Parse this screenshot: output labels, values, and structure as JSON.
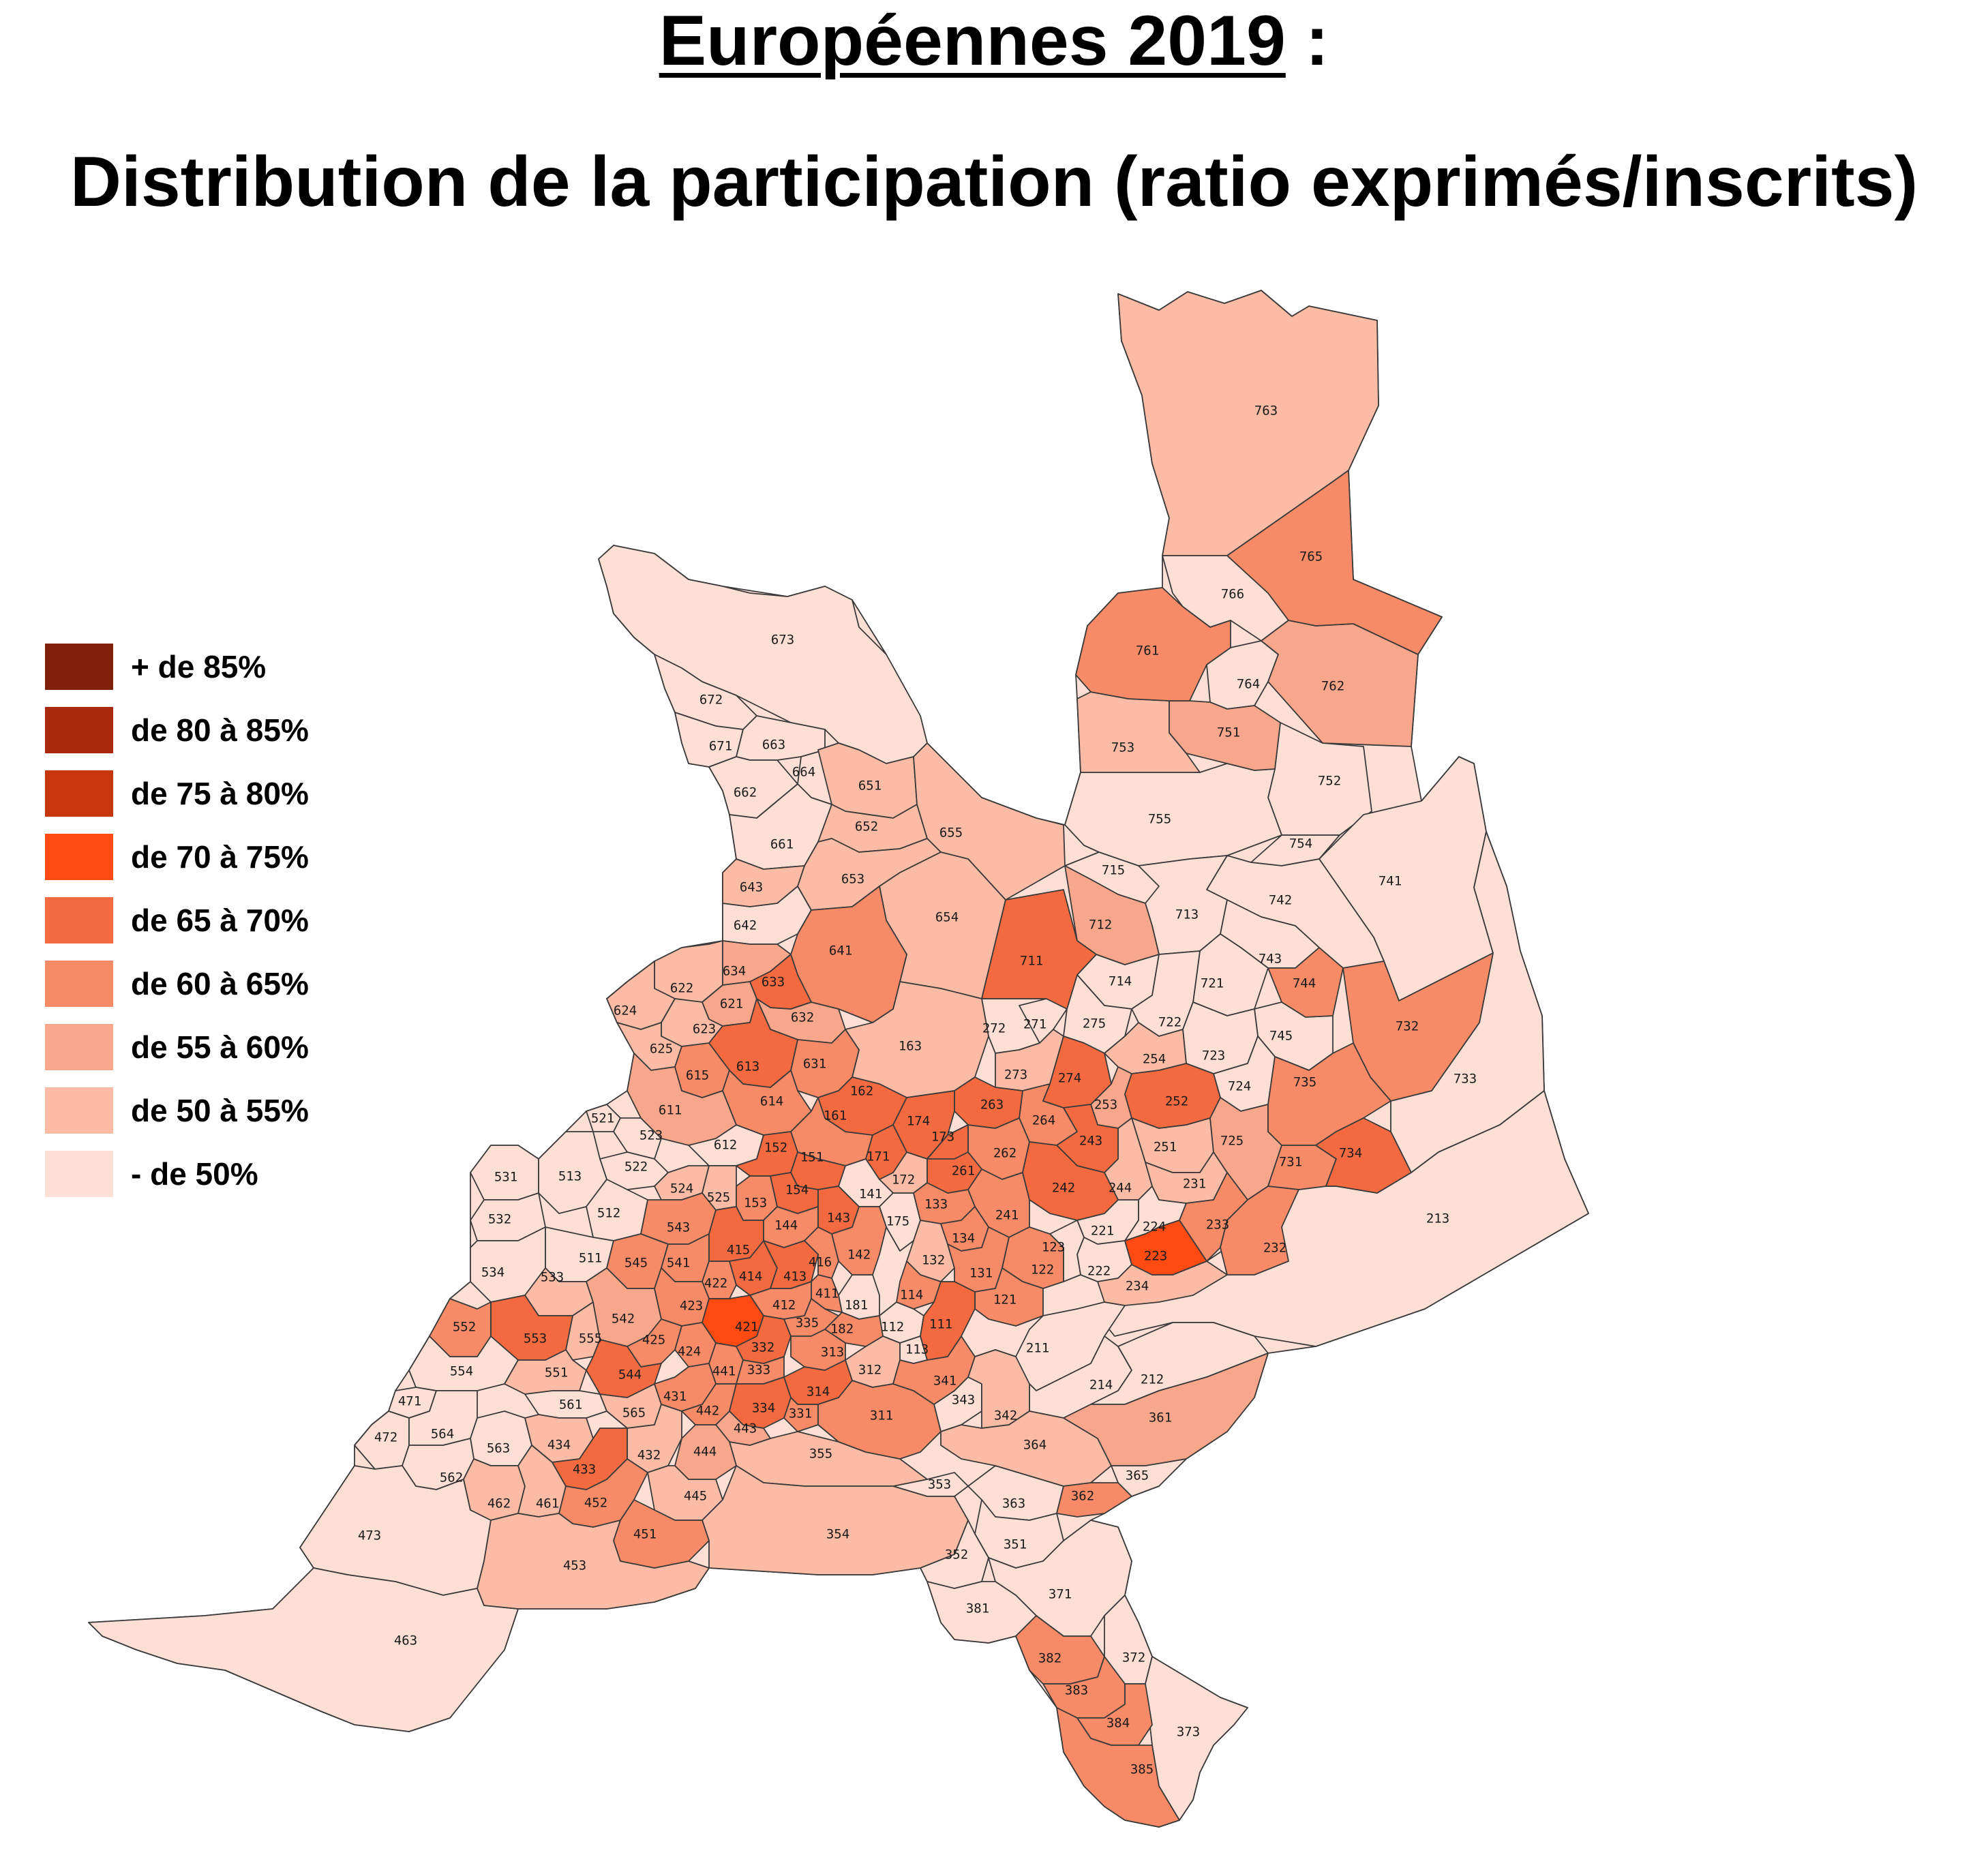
{
  "title": {
    "line1_main": "Européennes 2019",
    "line1_suffix": " :",
    "line2": "Distribution de la participation (ratio exprimés/inscrits)"
  },
  "legend": [
    {
      "label": "+ de 85%",
      "color": "#80200b"
    },
    {
      "label": "de 80 à 85%",
      "color": "#a8290c"
    },
    {
      "label": "de 75 à 80%",
      "color": "#c9360d"
    },
    {
      "label": "de 70 à 75%",
      "color": "#ff4a11"
    },
    {
      "label": "de 65 à 70%",
      "color": "#f36a40"
    },
    {
      "label": "de 60 à 65%",
      "color": "#f78a67"
    },
    {
      "label": "de 55 à 60%",
      "color": "#f9a78c"
    },
    {
      "label": "de 50 à 55%",
      "color": "#fbbba5"
    },
    {
      "label": "- de 50%",
      "color": "#fddfd6"
    }
  ],
  "districts": [
    {
      "id": "763",
      "class": 7
    },
    {
      "id": "765",
      "class": 5
    },
    {
      "id": "766",
      "class": 8
    },
    {
      "id": "761",
      "class": 5
    },
    {
      "id": "764",
      "class": 8
    },
    {
      "id": "762",
      "class": 6
    },
    {
      "id": "751",
      "class": 6
    },
    {
      "id": "753",
      "class": 7
    },
    {
      "id": "752",
      "class": 8
    },
    {
      "id": "755",
      "class": 8
    },
    {
      "id": "754",
      "class": 8
    },
    {
      "id": "741",
      "class": 8
    },
    {
      "id": "742",
      "class": 8
    },
    {
      "id": "713",
      "class": 8
    },
    {
      "id": "715",
      "class": 8
    },
    {
      "id": "712",
      "class": 6
    },
    {
      "id": "711",
      "class": 4
    },
    {
      "id": "714",
      "class": 8
    },
    {
      "id": "743",
      "class": 8
    },
    {
      "id": "721",
      "class": 8
    },
    {
      "id": "744",
      "class": 5
    },
    {
      "id": "732",
      "class": 5
    },
    {
      "id": "722",
      "class": 8
    },
    {
      "id": "745",
      "class": 8
    },
    {
      "id": "723",
      "class": 8
    },
    {
      "id": "724",
      "class": 8
    },
    {
      "id": "735",
      "class": 5
    },
    {
      "id": "733",
      "class": 8
    },
    {
      "id": "725",
      "class": 6
    },
    {
      "id": "731",
      "class": 5
    },
    {
      "id": "734",
      "class": 4
    },
    {
      "id": "213",
      "class": 8
    },
    {
      "id": "673",
      "class": 8
    },
    {
      "id": "672",
      "class": 8
    },
    {
      "id": "671",
      "class": 8
    },
    {
      "id": "663",
      "class": 8
    },
    {
      "id": "664",
      "class": 8
    },
    {
      "id": "662",
      "class": 8
    },
    {
      "id": "661",
      "class": 8
    },
    {
      "id": "651",
      "class": 7
    },
    {
      "id": "652",
      "class": 7
    },
    {
      "id": "655",
      "class": 7
    },
    {
      "id": "653",
      "class": 7
    },
    {
      "id": "643",
      "class": 7
    },
    {
      "id": "642",
      "class": 8
    },
    {
      "id": "654",
      "class": 7
    },
    {
      "id": "641",
      "class": 5
    },
    {
      "id": "634",
      "class": 6
    },
    {
      "id": "633",
      "class": 4
    },
    {
      "id": "622",
      "class": 7
    },
    {
      "id": "621",
      "class": 6
    },
    {
      "id": "632",
      "class": 6
    },
    {
      "id": "624",
      "class": 7
    },
    {
      "id": "623",
      "class": 7
    },
    {
      "id": "625",
      "class": 7
    },
    {
      "id": "613",
      "class": 4
    },
    {
      "id": "631",
      "class": 5
    },
    {
      "id": "615",
      "class": 5
    },
    {
      "id": "614",
      "class": 5
    },
    {
      "id": "611",
      "class": 6
    },
    {
      "id": "612",
      "class": 8
    },
    {
      "id": "163",
      "class": 7
    },
    {
      "id": "162",
      "class": 4
    },
    {
      "id": "161",
      "class": 5
    },
    {
      "id": "272",
      "class": 8
    },
    {
      "id": "271",
      "class": 8
    },
    {
      "id": "275",
      "class": 8
    },
    {
      "id": "273",
      "class": 7
    },
    {
      "id": "274",
      "class": 4
    },
    {
      "id": "254",
      "class": 7
    },
    {
      "id": "252",
      "class": 4
    },
    {
      "id": "253",
      "class": 6
    },
    {
      "id": "251",
      "class": 7
    },
    {
      "id": "264",
      "class": 5
    },
    {
      "id": "263",
      "class": 4
    },
    {
      "id": "262",
      "class": 5
    },
    {
      "id": "261",
      "class": 4
    },
    {
      "id": "243",
      "class": 4
    },
    {
      "id": "244",
      "class": 7
    },
    {
      "id": "242",
      "class": 4
    },
    {
      "id": "241",
      "class": 5
    },
    {
      "id": "231",
      "class": 7
    },
    {
      "id": "233",
      "class": 5
    },
    {
      "id": "232",
      "class": 5
    },
    {
      "id": "221",
      "class": 8
    },
    {
      "id": "224",
      "class": 8
    },
    {
      "id": "223",
      "class": 3
    },
    {
      "id": "222",
      "class": 8
    },
    {
      "id": "234",
      "class": 7
    },
    {
      "id": "174",
      "class": 4
    },
    {
      "id": "173",
      "class": 4
    },
    {
      "id": "171",
      "class": 4
    },
    {
      "id": "172",
      "class": 7
    },
    {
      "id": "152",
      "class": 4
    },
    {
      "id": "151",
      "class": 4
    },
    {
      "id": "154",
      "class": 4
    },
    {
      "id": "153",
      "class": 5
    },
    {
      "id": "141",
      "class": 8
    },
    {
      "id": "143",
      "class": 4
    },
    {
      "id": "144",
      "class": 5
    },
    {
      "id": "142",
      "class": 5
    },
    {
      "id": "175",
      "class": 8
    },
    {
      "id": "133",
      "class": 5
    },
    {
      "id": "134",
      "class": 5
    },
    {
      "id": "132",
      "class": 7
    },
    {
      "id": "131",
      "class": 5
    },
    {
      "id": "122",
      "class": 5
    },
    {
      "id": "121",
      "class": 5
    },
    {
      "id": "123",
      "class": 8
    },
    {
      "id": "114",
      "class": 5
    },
    {
      "id": "111",
      "class": 4
    },
    {
      "id": "112",
      "class": 8
    },
    {
      "id": "113",
      "class": 8
    },
    {
      "id": "181",
      "class": 8
    },
    {
      "id": "182",
      "class": 5
    },
    {
      "id": "521",
      "class": 8
    },
    {
      "id": "523",
      "class": 8
    },
    {
      "id": "522",
      "class": 8
    },
    {
      "id": "531",
      "class": 8
    },
    {
      "id": "513",
      "class": 8
    },
    {
      "id": "512",
      "class": 8
    },
    {
      "id": "532",
      "class": 8
    },
    {
      "id": "524",
      "class": 7
    },
    {
      "id": "525",
      "class": 7
    },
    {
      "id": "543",
      "class": 5
    },
    {
      "id": "534",
      "class": 8
    },
    {
      "id": "511",
      "class": 8
    },
    {
      "id": "533",
      "class": 7
    },
    {
      "id": "545",
      "class": 5
    },
    {
      "id": "541",
      "class": 5
    },
    {
      "id": "415",
      "class": 4
    },
    {
      "id": "414",
      "class": 4
    },
    {
      "id": "413",
      "class": 4
    },
    {
      "id": "416",
      "class": 5
    },
    {
      "id": "422",
      "class": 5
    },
    {
      "id": "423",
      "class": 5
    },
    {
      "id": "411",
      "class": 5
    },
    {
      "id": "412",
      "class": 5
    },
    {
      "id": "542",
      "class": 6
    },
    {
      "id": "552",
      "class": 5
    },
    {
      "id": "553",
      "class": 4
    },
    {
      "id": "555",
      "class": 7
    },
    {
      "id": "425",
      "class": 5
    },
    {
      "id": "421",
      "class": 3
    },
    {
      "id": "335",
      "class": 5
    },
    {
      "id": "424",
      "class": 5
    },
    {
      "id": "332",
      "class": 4
    },
    {
      "id": "313",
      "class": 5
    },
    {
      "id": "554",
      "class": 8
    },
    {
      "id": "551",
      "class": 7
    },
    {
      "id": "544",
      "class": 4
    },
    {
      "id": "441",
      "class": 5
    },
    {
      "id": "333",
      "class": 5
    },
    {
      "id": "312",
      "class": 7
    },
    {
      "id": "471",
      "class": 8
    },
    {
      "id": "561",
      "class": 8
    },
    {
      "id": "565",
      "class": 7
    },
    {
      "id": "431",
      "class": 5
    },
    {
      "id": "442",
      "class": 5
    },
    {
      "id": "334",
      "class": 4
    },
    {
      "id": "314",
      "class": 4
    },
    {
      "id": "331",
      "class": 5
    },
    {
      "id": "311",
      "class": 5
    },
    {
      "id": "341",
      "class": 5
    },
    {
      "id": "343",
      "class": 8
    },
    {
      "id": "342",
      "class": 7
    },
    {
      "id": "472",
      "class": 8
    },
    {
      "id": "564",
      "class": 8
    },
    {
      "id": "563",
      "class": 8
    },
    {
      "id": "434",
      "class": 7
    },
    {
      "id": "432",
      "class": 7
    },
    {
      "id": "443",
      "class": 6
    },
    {
      "id": "444",
      "class": 6
    },
    {
      "id": "355",
      "class": 7
    },
    {
      "id": "364",
      "class": 7
    },
    {
      "id": "361",
      "class": 6
    },
    {
      "id": "562",
      "class": 8
    },
    {
      "id": "433",
      "class": 4
    },
    {
      "id": "365",
      "class": 8
    },
    {
      "id": "462",
      "class": 7
    },
    {
      "id": "461",
      "class": 7
    },
    {
      "id": "452",
      "class": 5
    },
    {
      "id": "445",
      "class": 7
    },
    {
      "id": "353",
      "class": 8
    },
    {
      "id": "363",
      "class": 8
    },
    {
      "id": "362",
      "class": 5
    },
    {
      "id": "473",
      "class": 8
    },
    {
      "id": "451",
      "class": 5
    },
    {
      "id": "354",
      "class": 7
    },
    {
      "id": "351",
      "class": 8
    },
    {
      "id": "453",
      "class": 7
    },
    {
      "id": "352",
      "class": 8
    },
    {
      "id": "371",
      "class": 8
    },
    {
      "id": "381",
      "class": 8
    },
    {
      "id": "463",
      "class": 8
    },
    {
      "id": "382",
      "class": 5
    },
    {
      "id": "372",
      "class": 8
    },
    {
      "id": "383",
      "class": 5
    },
    {
      "id": "384",
      "class": 5
    },
    {
      "id": "373",
      "class": 8
    },
    {
      "id": "385",
      "class": 5
    },
    {
      "id": "211",
      "class": 8
    },
    {
      "id": "214",
      "class": 8
    },
    {
      "id": "212",
      "class": 8
    }
  ]
}
